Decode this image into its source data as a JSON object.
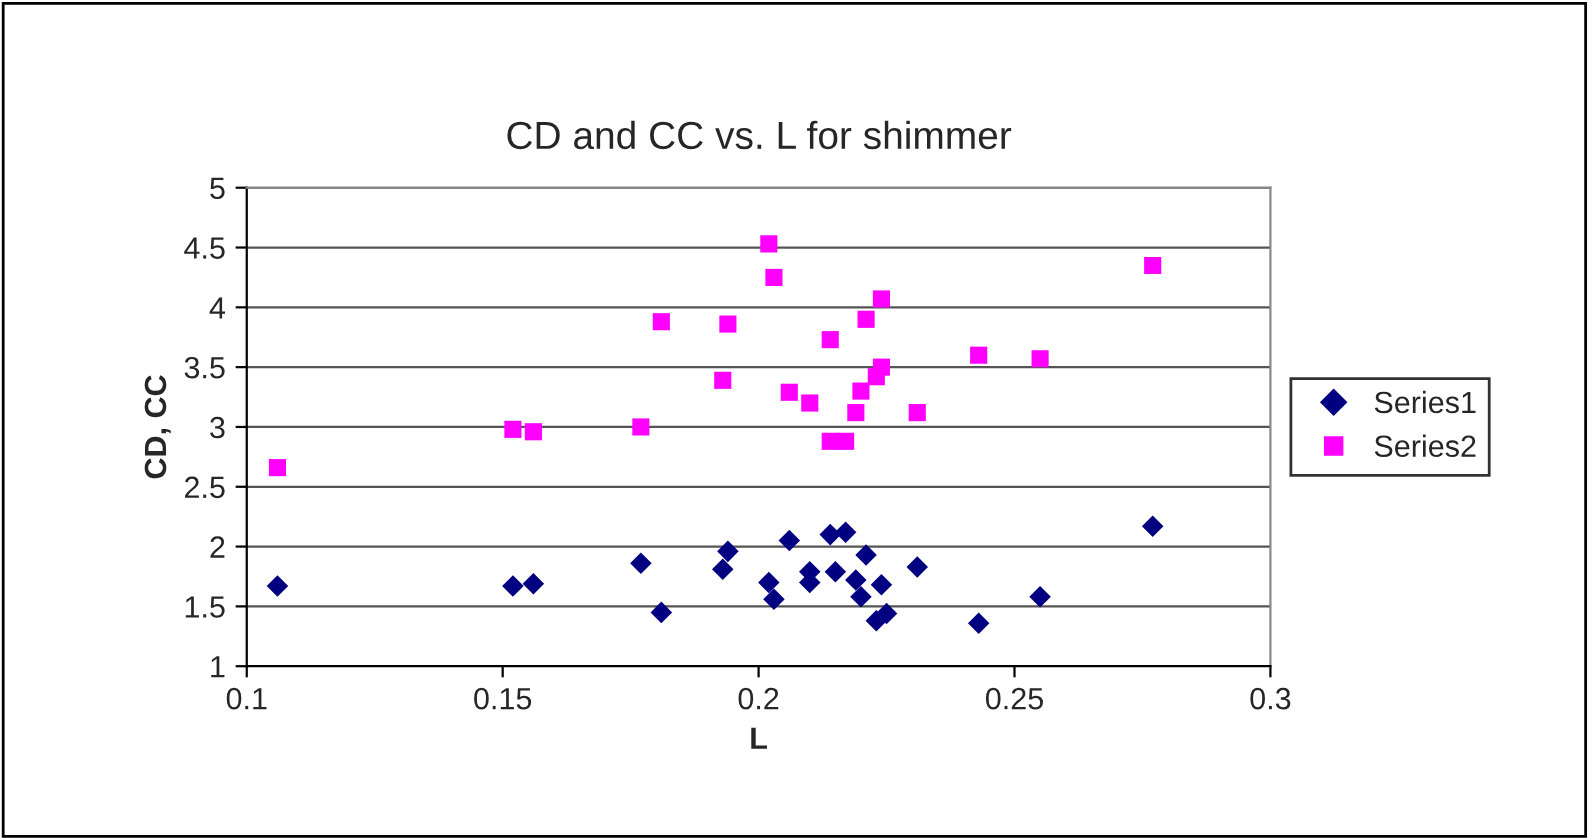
{
  "chart_data": {
    "type": "scatter",
    "title": "CD and CC vs. L for shimmer",
    "xlabel": "L",
    "ylabel": "CD, CC",
    "xlim": [
      0.1,
      0.3
    ],
    "xticks": [
      0.1,
      0.15,
      0.2,
      0.25,
      0.3
    ],
    "ylim": [
      1,
      5
    ],
    "yticks": [
      1,
      1.5,
      2,
      2.5,
      3,
      3.5,
      4,
      4.5,
      5
    ],
    "grid": "y",
    "legend": "right",
    "series": [
      {
        "name": "Series1",
        "color": "#000080",
        "marker": "diamond",
        "x": [
          0.106,
          0.152,
          0.156,
          0.177,
          0.181,
          0.193,
          0.194,
          0.202,
          0.203,
          0.206,
          0.21,
          0.21,
          0.214,
          0.215,
          0.217,
          0.219,
          0.22,
          0.221,
          0.223,
          0.224,
          0.225,
          0.231,
          0.243,
          0.255,
          0.277
        ],
        "values": [
          1.67,
          1.67,
          1.69,
          1.86,
          1.45,
          1.81,
          1.96,
          1.7,
          1.56,
          2.05,
          1.79,
          1.7,
          2.1,
          1.79,
          2.12,
          1.72,
          1.58,
          1.93,
          1.38,
          1.68,
          1.44,
          1.83,
          1.36,
          1.58,
          2.17
        ]
      },
      {
        "name": "Series2",
        "color": "#ff00ff",
        "marker": "square",
        "x": [
          0.106,
          0.152,
          0.156,
          0.177,
          0.181,
          0.193,
          0.194,
          0.202,
          0.203,
          0.206,
          0.21,
          0.214,
          0.214,
          0.217,
          0.219,
          0.22,
          0.221,
          0.223,
          0.224,
          0.224,
          0.231,
          0.243,
          0.255,
          0.277
        ],
        "values": [
          2.66,
          2.98,
          2.96,
          3.0,
          3.88,
          3.39,
          3.86,
          4.53,
          4.25,
          3.29,
          3.2,
          2.88,
          3.73,
          2.88,
          3.12,
          3.3,
          3.9,
          3.42,
          4.07,
          3.5,
          3.12,
          3.6,
          3.57,
          4.35
        ]
      }
    ]
  }
}
